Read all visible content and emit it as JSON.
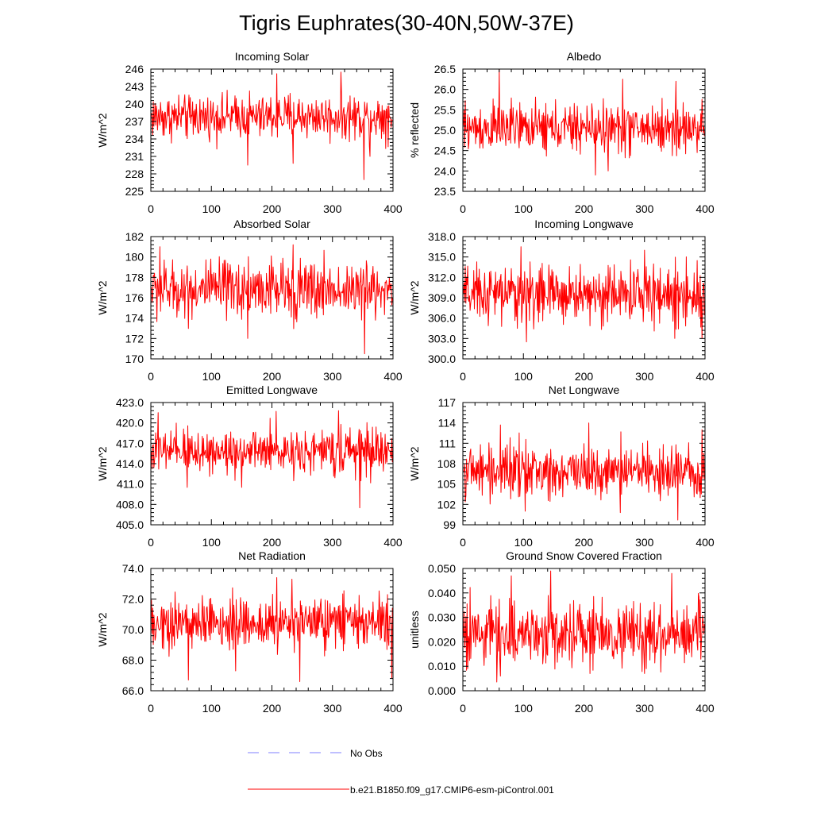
{
  "title": "Tigris Euphrates(30-40N,50W-37E)",
  "colors": {
    "series": "#ff0000",
    "no_obs": "#7f7fff",
    "axes": "#000000"
  },
  "legend": {
    "no_obs_label": "No Obs",
    "run_label": "b.e21.B1850.f09_g17.CMIP6-esm-piControl.001"
  },
  "chart_data": [
    {
      "type": "line",
      "title": "Incoming Solar",
      "ylabel": "W/m^2",
      "xlim": [
        0,
        400
      ],
      "ylim": [
        225,
        246
      ],
      "xticks": [
        0,
        100,
        200,
        300,
        400
      ],
      "xtick_labels": [
        "0",
        "100",
        "200",
        "300",
        "400"
      ],
      "yticks": [
        225,
        228,
        231,
        234,
        237,
        240,
        243,
        246
      ],
      "ytick_labels": [
        "225",
        "228",
        "231",
        "234",
        "237",
        "240",
        "243",
        "246"
      ],
      "series": [
        {
          "name": "b.e21.B1850.f09_g17.CMIP6-esm-piControl.001",
          "x_start": 1,
          "x_end": 399,
          "n": 399,
          "mean": 237.8,
          "spread": 2.3,
          "spikes": [
            [
              160,
              229.5
            ],
            [
              235,
              229.8
            ],
            [
              352,
              227.0
            ],
            [
              362,
              231.0
            ],
            [
              314,
              245.5
            ],
            [
              208,
              245.2
            ]
          ]
        }
      ]
    },
    {
      "type": "line",
      "title": "Albedo",
      "ylabel": "% reflected",
      "xlim": [
        0,
        400
      ],
      "ylim": [
        23.5,
        26.5
      ],
      "xticks": [
        0,
        100,
        200,
        300,
        400
      ],
      "xtick_labels": [
        "0",
        "100",
        "200",
        "300",
        "400"
      ],
      "yticks": [
        23.5,
        24.0,
        24.5,
        25.0,
        25.5,
        26.0,
        26.5
      ],
      "ytick_labels": [
        "23.5",
        "24.0",
        "24.5",
        "25.0",
        "25.5",
        "26.0",
        "26.5"
      ],
      "series": [
        {
          "name": "b.e21.B1850.f09_g17.CMIP6-esm-piControl.001",
          "x_start": 1,
          "x_end": 399,
          "n": 399,
          "mean": 25.05,
          "spread": 0.35,
          "spikes": [
            [
              60,
              26.5
            ],
            [
              264,
              26.25
            ],
            [
              219,
              23.9
            ],
            [
              352,
              26.2
            ],
            [
              240,
              24.0
            ]
          ]
        }
      ]
    },
    {
      "type": "line",
      "title": "Absorbed Solar",
      "ylabel": "W/m^2",
      "xlim": [
        0,
        400
      ],
      "ylim": [
        170,
        182
      ],
      "xticks": [
        0,
        100,
        200,
        300,
        400
      ],
      "xtick_labels": [
        "0",
        "100",
        "200",
        "300",
        "400"
      ],
      "yticks": [
        170,
        172,
        174,
        176,
        178,
        180,
        182
      ],
      "ytick_labels": [
        "170",
        "172",
        "174",
        "176",
        "178",
        "180",
        "182"
      ],
      "series": [
        {
          "name": "b.e21.B1850.f09_g17.CMIP6-esm-piControl.001",
          "x_start": 1,
          "x_end": 399,
          "n": 399,
          "mean": 176.8,
          "spread": 1.7,
          "spikes": [
            [
              353,
              170.5
            ],
            [
              160,
              172.0
            ],
            [
              235,
              181.2
            ],
            [
              15,
              181.0
            ]
          ]
        }
      ]
    },
    {
      "type": "line",
      "title": "Incoming Longwave",
      "ylabel": "W/m^2",
      "xlim": [
        0,
        400
      ],
      "ylim": [
        300,
        318
      ],
      "xticks": [
        0,
        100,
        200,
        300,
        400
      ],
      "xtick_labels": [
        "0",
        "100",
        "200",
        "300",
        "400"
      ],
      "yticks": [
        300,
        303,
        306,
        309,
        312,
        315,
        318
      ],
      "ytick_labels": [
        "300.0",
        "303.0",
        "306.0",
        "309.0",
        "312.0",
        "315.0",
        "318.0"
      ],
      "series": [
        {
          "name": "b.e21.B1850.f09_g17.CMIP6-esm-piControl.001",
          "x_start": 1,
          "x_end": 399,
          "n": 399,
          "mean": 309.5,
          "spread": 2.5,
          "spikes": [
            [
              96,
              316.5
            ],
            [
              105,
              302.5
            ],
            [
              300,
              316.0
            ],
            [
              350,
              303.0
            ],
            [
              395,
              303.0
            ]
          ]
        }
      ]
    },
    {
      "type": "line",
      "title": "Emitted Longwave",
      "ylabel": "W/m^2",
      "xlim": [
        0,
        400
      ],
      "ylim": [
        405,
        423
      ],
      "xticks": [
        0,
        100,
        200,
        300,
        400
      ],
      "xtick_labels": [
        "0",
        "100",
        "200",
        "300",
        "400"
      ],
      "yticks": [
        405,
        408,
        411,
        414,
        417,
        420,
        423
      ],
      "ytick_labels": [
        "405.0",
        "408.0",
        "411.0",
        "414.0",
        "417.0",
        "420.0",
        "423.0"
      ],
      "series": [
        {
          "name": "b.e21.B1850.f09_g17.CMIP6-esm-piControl.001",
          "x_start": 1,
          "x_end": 399,
          "n": 399,
          "mean": 415.8,
          "spread": 1.9,
          "spikes": [
            [
              345,
              407.5
            ],
            [
              310,
              421.8
            ],
            [
              12,
              421.5
            ],
            [
              207,
              421.7
            ],
            [
              60,
              410.5
            ],
            [
              150,
              410.5
            ]
          ]
        }
      ]
    },
    {
      "type": "line",
      "title": "Net Longwave",
      "ylabel": "W/m^2",
      "xlim": [
        0,
        400
      ],
      "ylim": [
        99,
        117
      ],
      "xticks": [
        0,
        100,
        200,
        300,
        400
      ],
      "xtick_labels": [
        "0",
        "100",
        "200",
        "300",
        "400"
      ],
      "yticks": [
        99,
        102,
        105,
        108,
        111,
        114,
        117
      ],
      "ytick_labels": [
        "99",
        "102",
        "105",
        "108",
        "111",
        "114",
        "117"
      ],
      "series": [
        {
          "name": "b.e21.B1850.f09_g17.CMIP6-esm-piControl.001",
          "x_start": 1,
          "x_end": 399,
          "n": 399,
          "mean": 106.9,
          "spread": 2.2,
          "spikes": [
            [
              355,
              99.7
            ],
            [
              62,
              113.7
            ],
            [
              208,
              114.0
            ],
            [
              395,
              113.0
            ],
            [
              260,
              100.8
            ],
            [
              103,
              101.0
            ]
          ]
        }
      ]
    },
    {
      "type": "line",
      "title": "Net Radiation",
      "ylabel": "W/m^2",
      "xlim": [
        0,
        400
      ],
      "ylim": [
        66,
        74
      ],
      "xticks": [
        0,
        100,
        200,
        300,
        400
      ],
      "xtick_labels": [
        "0",
        "100",
        "200",
        "300",
        "400"
      ],
      "yticks": [
        66,
        68,
        70,
        72,
        74
      ],
      "ytick_labels": [
        "66.0",
        "68.0",
        "70.0",
        "72.0",
        "74.0"
      ],
      "series": [
        {
          "name": "b.e21.B1850.f09_g17.CMIP6-esm-piControl.001",
          "x_start": 1,
          "x_end": 399,
          "n": 399,
          "mean": 70.4,
          "spread": 1.0,
          "spikes": [
            [
              62,
              66.7
            ],
            [
              246,
              66.6
            ],
            [
              208,
              73.4
            ],
            [
              233,
              73.3
            ],
            [
              398,
              66.8
            ],
            [
              140,
              67.3
            ]
          ]
        }
      ]
    },
    {
      "type": "line",
      "title": "Ground Snow Covered Fraction",
      "ylabel": "unitless",
      "xlim": [
        0,
        400
      ],
      "ylim": [
        0.0,
        0.05
      ],
      "xticks": [
        0,
        100,
        200,
        300,
        400
      ],
      "xtick_labels": [
        "0",
        "100",
        "200",
        "300",
        "400"
      ],
      "yticks": [
        0.0,
        0.01,
        0.02,
        0.03,
        0.04,
        0.05
      ],
      "ytick_labels": [
        "0.000",
        "0.010",
        "0.020",
        "0.030",
        "0.040",
        "0.050"
      ],
      "series": [
        {
          "name": "b.e21.B1850.f09_g17.CMIP6-esm-piControl.001",
          "x_start": 1,
          "x_end": 399,
          "n": 399,
          "mean": 0.0235,
          "spread": 0.0075,
          "spikes": [
            [
              145,
              0.049
            ],
            [
              345,
              0.048
            ],
            [
              62,
              0.006
            ],
            [
              210,
              0.007
            ],
            [
              300,
              0.007
            ],
            [
              80,
              0.047
            ]
          ]
        }
      ]
    }
  ]
}
